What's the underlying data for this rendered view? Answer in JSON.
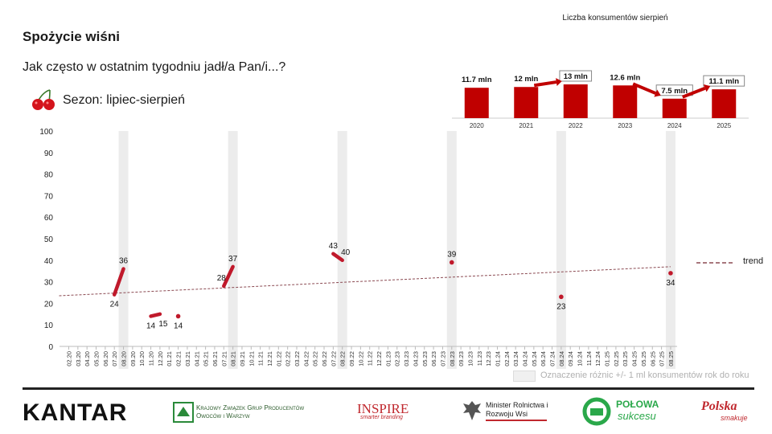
{
  "title": "Spożycie wiśni",
  "subtitle": "Jak często w ostatnim tygodniu jadł/a Pan/i...?",
  "season": "Sezon: lipiec-sierpień",
  "legend_text": "Oznaczenie różnic +/- 1 ml konsumentów rok do roku",
  "trend_label": "trend",
  "logos": {
    "kantar": "KANTAR",
    "kzgp": "Krajowy Związek Grup Producentów Owoców i Warzyw",
    "inspire": "INSPIRE",
    "inspire_tag": "smarter branding",
    "minister": "Minister Rolnictwa i Rozwoju Wsi",
    "polowa": "POŁOWA",
    "polowa2": "sukcesu",
    "polska": "Polska",
    "polska2": "smakuje"
  },
  "colors": {
    "series": "#c0192b",
    "trend": "#8b4a52",
    "highlight": "#ececec",
    "bar": "#c00000"
  },
  "chart_data": [
    {
      "type": "line",
      "ylim": [
        0,
        100
      ],
      "yticks": [
        0,
        10,
        20,
        30,
        40,
        50,
        60,
        70,
        80,
        90,
        100
      ],
      "categories": [
        "02.20",
        "03.20",
        "04.20",
        "05.20",
        "06.20",
        "07.20",
        "08.20",
        "09.20",
        "10.20",
        "11.20",
        "12.20",
        "01.21",
        "02.21",
        "03.21",
        "04.21",
        "05.21",
        "06.21",
        "07.21",
        "08.21",
        "09.21",
        "10.21",
        "11.21",
        "12.21",
        "01.22",
        "02.22",
        "03.22",
        "04.22",
        "05.22",
        "06.22",
        "07.22",
        "08.22",
        "09.22",
        "10.22",
        "11.22",
        "12.22",
        "01.23",
        "02.23",
        "03.23",
        "04.23",
        "05.23",
        "06.23",
        "07.23",
        "08.23",
        "09.23",
        "10.23",
        "11.23",
        "12.23",
        "01.24",
        "02.24",
        "03.24",
        "04.24",
        "05.24",
        "06.24",
        "07.24",
        "08.24",
        "09.24",
        "10.24",
        "11.24",
        "12.24",
        "01.25",
        "02.25",
        "03.25",
        "04.25",
        "05.25",
        "06.25",
        "07.25",
        "08.25"
      ],
      "highlighted_categories": [
        "08.20",
        "08.21",
        "08.22",
        "08.23",
        "08.24",
        "08.25"
      ],
      "series": [
        {
          "points": [
            {
              "x": "07.20",
              "y": 24,
              "label": "24"
            },
            {
              "x": "08.20",
              "y": 36,
              "label": "36"
            },
            {
              "x": "11.20",
              "y": 14,
              "label": "14"
            },
            {
              "x": "12.20",
              "y": 15,
              "label": "15"
            },
            {
              "x": "02.21",
              "y": 14,
              "label": "14"
            },
            {
              "x": "07.21",
              "y": 28,
              "label": "28"
            },
            {
              "x": "08.21",
              "y": 37,
              "label": "37"
            },
            {
              "x": "07.22",
              "y": 43,
              "label": "43"
            },
            {
              "x": "08.22",
              "y": 40,
              "label": "40"
            },
            {
              "x": "08.23",
              "y": 39,
              "label": "39"
            },
            {
              "x": "08.24",
              "y": 23,
              "label": "23"
            },
            {
              "x": "08.25",
              "y": 34,
              "label": "34"
            }
          ],
          "segments": [
            [
              "07.20",
              "08.20"
            ],
            [
              "11.20",
              "12.20"
            ],
            [
              "07.21",
              "08.21"
            ],
            [
              "07.22",
              "08.22"
            ]
          ]
        }
      ],
      "trend": {
        "start": {
          "x": "02.20",
          "y": 23.5
        },
        "end": {
          "x": "08.25",
          "y": 37
        }
      }
    },
    {
      "type": "bar",
      "title": "Liczba konsumentów sierpień",
      "categories": [
        "2020",
        "2021",
        "2022",
        "2023",
        "2024",
        "2025"
      ],
      "values": [
        11.7,
        12,
        13,
        12.6,
        7.5,
        11.1
      ],
      "labels": [
        "11.7 mln",
        "12 mln",
        "13 mln",
        "12.6 mln",
        "7.5 mln",
        "11.1 mln"
      ],
      "boxed": [
        "2022",
        "2024",
        "2025"
      ],
      "arrows": [
        [
          "2021",
          "2022"
        ],
        [
          "2023",
          "2024"
        ],
        [
          "2024",
          "2025"
        ]
      ]
    }
  ]
}
